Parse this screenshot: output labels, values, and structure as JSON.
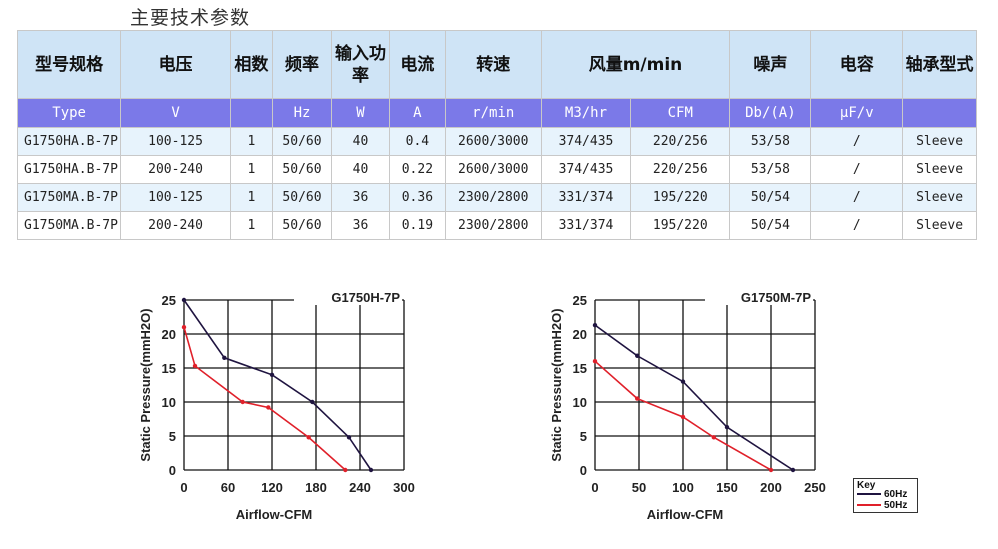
{
  "page_title": "主要技术参数",
  "table": {
    "headers": [
      "型号规格",
      "电压",
      "相数",
      "频率",
      "输入功率",
      "电流",
      "转速",
      "风量m/min",
      "",
      "噪声",
      "电容",
      "轴承型式"
    ],
    "units": [
      "Type",
      "V",
      "",
      "Hz",
      "W",
      "A",
      "r/min",
      "M3/hr",
      "CFM",
      "Db/(A)",
      "μF/v",
      ""
    ],
    "rows": [
      [
        "G1750HA.B-7P",
        "100-125",
        "1",
        "50/60",
        "40",
        "0.4",
        "2600/3000",
        "374/435",
        "220/256",
        "53/58",
        "/",
        "Sleeve"
      ],
      [
        "G1750HA.B-7P",
        "200-240",
        "1",
        "50/60",
        "40",
        "0.22",
        "2600/3000",
        "374/435",
        "220/256",
        "53/58",
        "/",
        "Sleeve"
      ],
      [
        "G1750MA.B-7P",
        "100-125",
        "1",
        "50/60",
        "36",
        "0.36",
        "2300/2800",
        "331/374",
        "195/220",
        "50/54",
        "/",
        "Sleeve"
      ],
      [
        "G1750MA.B-7P",
        "200-240",
        "1",
        "50/60",
        "36",
        "0.19",
        "2300/2800",
        "331/374",
        "195/220",
        "50/54",
        "/",
        "Sleeve"
      ]
    ]
  },
  "legend": {
    "title": "Key",
    "items": [
      {
        "label": "60Hz",
        "color": "#1f1440"
      },
      {
        "label": "50Hz",
        "color": "#e0202a"
      }
    ]
  },
  "chart_data": [
    {
      "type": "line",
      "title": "G1750H-7P",
      "xlabel": "Airflow-CFM",
      "ylabel": "Static Pressure(mmH2O)",
      "xlim": [
        0,
        300
      ],
      "ylim": [
        0,
        25
      ],
      "xticks": [
        "0",
        "60",
        "120",
        "180",
        "240",
        "300"
      ],
      "yticks": [
        "0",
        "5",
        "10",
        "15",
        "20",
        "25"
      ],
      "grid": true,
      "series": [
        {
          "name": "60Hz",
          "color": "#1f1440",
          "points": [
            [
              0,
              25
            ],
            [
              55,
              16.5
            ],
            [
              120,
              14
            ],
            [
              175,
              10
            ],
            [
              225,
              4.8
            ],
            [
              255,
              0
            ]
          ]
        },
        {
          "name": "50Hz",
          "color": "#e0202a",
          "points": [
            [
              0,
              21
            ],
            [
              15,
              15.3
            ],
            [
              80,
              10
            ],
            [
              115,
              9.2
            ],
            [
              170,
              4.8
            ],
            [
              220,
              0
            ]
          ]
        }
      ]
    },
    {
      "type": "line",
      "title": "G1750M-7P",
      "xlabel": "Airflow-CFM",
      "ylabel": "Static Pressure(mmH2O)",
      "xlim": [
        0,
        250
      ],
      "ylim": [
        0,
        25
      ],
      "xticks": [
        "0",
        "50",
        "100",
        "150",
        "200",
        "250"
      ],
      "yticks": [
        "0",
        "5",
        "10",
        "15",
        "20",
        "25"
      ],
      "grid": true,
      "series": [
        {
          "name": "60Hz",
          "color": "#1f1440",
          "points": [
            [
              0,
              21.3
            ],
            [
              48,
              16.8
            ],
            [
              100,
              13
            ],
            [
              150,
              6.3
            ],
            [
              225,
              0
            ]
          ]
        },
        {
          "name": "50Hz",
          "color": "#e0202a",
          "points": [
            [
              0,
              16
            ],
            [
              48,
              10.5
            ],
            [
              100,
              7.8
            ],
            [
              135,
              4.8
            ],
            [
              200,
              0
            ]
          ]
        }
      ]
    }
  ]
}
